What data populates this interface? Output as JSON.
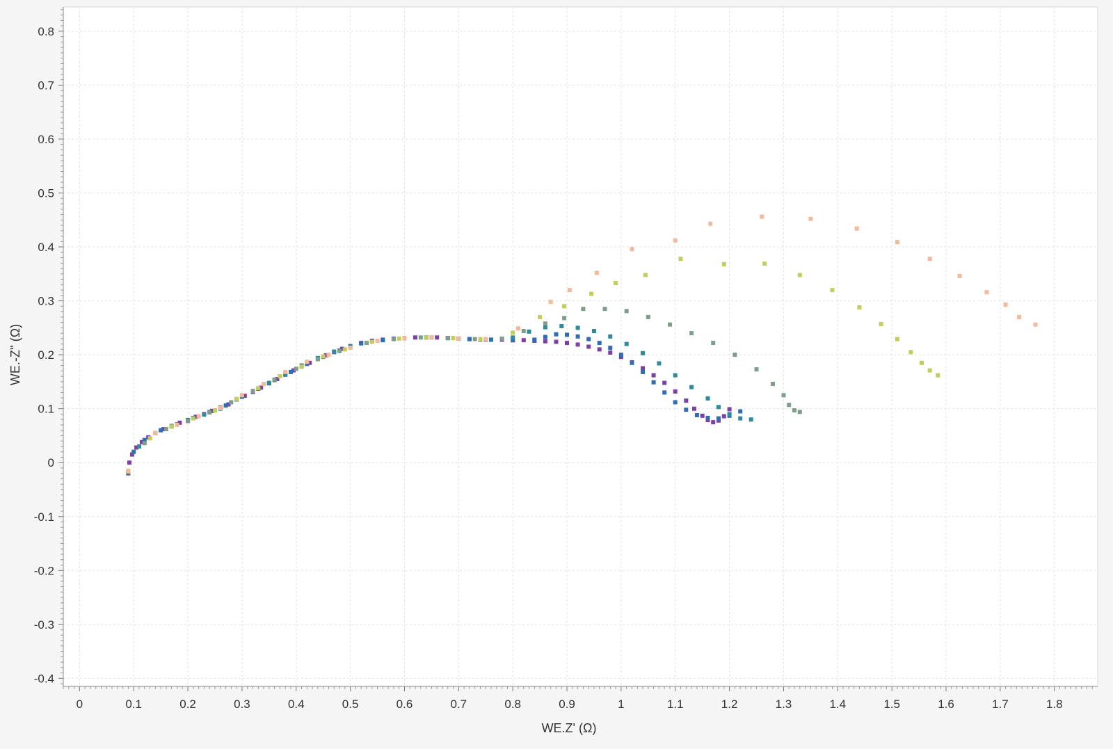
{
  "chart_data": {
    "type": "scatter",
    "title": "",
    "xlabel": "WE.Z' (Ω)",
    "ylabel": "WE.-Z'' (Ω)",
    "xlim": [
      -0.03,
      1.88
    ],
    "ylim": [
      -0.415,
      0.845
    ],
    "xticks": [
      "0",
      "0.1",
      "0.2",
      "0.3",
      "0.4",
      "0.5",
      "0.6",
      "0.7",
      "0.8",
      "0.9",
      "1",
      "1.1",
      "1.2",
      "1.3",
      "1.4",
      "1.5",
      "1.6",
      "1.7",
      "1.8"
    ],
    "yticks": [
      "0.8",
      "0.7",
      "0.6",
      "0.5",
      "0.4",
      "0.3",
      "0.2",
      "0.1",
      "0",
      "-0.1",
      "-0.2",
      "-0.3",
      "-0.4"
    ],
    "grid": true,
    "legend": "none",
    "marker": "square",
    "series": [
      {
        "color": "#7e3fa8",
        "points": [
          [
            0.09,
            -0.02
          ],
          [
            0.092,
            0.0
          ],
          [
            0.097,
            0.015
          ],
          [
            0.105,
            0.028
          ],
          [
            0.115,
            0.038
          ],
          [
            0.127,
            0.047
          ],
          [
            0.14,
            0.055
          ],
          [
            0.155,
            0.062
          ],
          [
            0.17,
            0.068
          ],
          [
            0.185,
            0.074
          ],
          [
            0.2,
            0.079
          ],
          [
            0.215,
            0.085
          ],
          [
            0.23,
            0.09
          ],
          [
            0.245,
            0.096
          ],
          [
            0.26,
            0.102
          ],
          [
            0.275,
            0.108
          ],
          [
            0.29,
            0.117
          ],
          [
            0.305,
            0.124
          ],
          [
            0.32,
            0.131
          ],
          [
            0.335,
            0.139
          ],
          [
            0.35,
            0.147
          ],
          [
            0.365,
            0.155
          ],
          [
            0.38,
            0.163
          ],
          [
            0.395,
            0.171
          ],
          [
            0.41,
            0.178
          ],
          [
            0.425,
            0.185
          ],
          [
            0.44,
            0.192
          ],
          [
            0.455,
            0.199
          ],
          [
            0.47,
            0.205
          ],
          [
            0.485,
            0.211
          ],
          [
            0.5,
            0.216
          ],
          [
            0.52,
            0.222
          ],
          [
            0.54,
            0.226
          ],
          [
            0.56,
            0.228
          ],
          [
            0.58,
            0.23
          ],
          [
            0.6,
            0.231
          ],
          [
            0.62,
            0.232
          ],
          [
            0.64,
            0.232
          ],
          [
            0.66,
            0.232
          ],
          [
            0.68,
            0.231
          ],
          [
            0.7,
            0.23
          ],
          [
            0.72,
            0.229
          ],
          [
            0.74,
            0.228
          ],
          [
            0.76,
            0.228
          ],
          [
            0.78,
            0.228
          ],
          [
            0.8,
            0.227
          ],
          [
            0.82,
            0.227
          ],
          [
            0.84,
            0.226
          ],
          [
            0.86,
            0.225
          ],
          [
            0.88,
            0.224
          ],
          [
            0.9,
            0.222
          ],
          [
            0.92,
            0.219
          ],
          [
            0.94,
            0.215
          ],
          [
            0.96,
            0.21
          ],
          [
            0.98,
            0.204
          ],
          [
            1.0,
            0.196
          ],
          [
            1.02,
            0.186
          ],
          [
            1.04,
            0.175
          ],
          [
            1.06,
            0.162
          ],
          [
            1.08,
            0.148
          ],
          [
            1.1,
            0.132
          ],
          [
            1.12,
            0.115
          ],
          [
            1.135,
            0.1
          ],
          [
            1.15,
            0.087
          ],
          [
            1.16,
            0.079
          ],
          [
            1.17,
            0.075
          ],
          [
            1.18,
            0.078
          ],
          [
            1.19,
            0.086
          ],
          [
            1.2,
            0.099
          ]
        ]
      },
      {
        "color": "#2f6db5",
        "points": [
          [
            0.09,
            -0.018
          ],
          [
            0.1,
            0.02
          ],
          [
            0.12,
            0.042
          ],
          [
            0.15,
            0.06
          ],
          [
            0.18,
            0.071
          ],
          [
            0.21,
            0.083
          ],
          [
            0.24,
            0.094
          ],
          [
            0.27,
            0.106
          ],
          [
            0.3,
            0.122
          ],
          [
            0.33,
            0.137
          ],
          [
            0.36,
            0.153
          ],
          [
            0.39,
            0.168
          ],
          [
            0.42,
            0.183
          ],
          [
            0.45,
            0.196
          ],
          [
            0.48,
            0.208
          ],
          [
            0.52,
            0.221
          ],
          [
            0.56,
            0.227
          ],
          [
            0.6,
            0.231
          ],
          [
            0.64,
            0.232
          ],
          [
            0.68,
            0.231
          ],
          [
            0.72,
            0.229
          ],
          [
            0.76,
            0.228
          ],
          [
            0.8,
            0.227
          ],
          [
            0.84,
            0.228
          ],
          [
            0.86,
            0.233
          ],
          [
            0.88,
            0.238
          ],
          [
            0.9,
            0.237
          ],
          [
            0.92,
            0.234
          ],
          [
            0.94,
            0.229
          ],
          [
            0.96,
            0.222
          ],
          [
            0.98,
            0.213
          ],
          [
            1.0,
            0.2
          ],
          [
            1.02,
            0.185
          ],
          [
            1.04,
            0.168
          ],
          [
            1.06,
            0.149
          ],
          [
            1.08,
            0.13
          ],
          [
            1.1,
            0.112
          ],
          [
            1.12,
            0.098
          ],
          [
            1.14,
            0.088
          ],
          [
            1.16,
            0.083
          ],
          [
            1.18,
            0.082
          ],
          [
            1.2,
            0.087
          ],
          [
            1.22,
            0.095
          ]
        ]
      },
      {
        "color": "#2f8a9c",
        "points": [
          [
            0.09,
            -0.018
          ],
          [
            0.11,
            0.03
          ],
          [
            0.14,
            0.055
          ],
          [
            0.17,
            0.067
          ],
          [
            0.2,
            0.078
          ],
          [
            0.23,
            0.089
          ],
          [
            0.26,
            0.1
          ],
          [
            0.29,
            0.117
          ],
          [
            0.32,
            0.132
          ],
          [
            0.35,
            0.148
          ],
          [
            0.38,
            0.164
          ],
          [
            0.41,
            0.18
          ],
          [
            0.44,
            0.194
          ],
          [
            0.47,
            0.206
          ],
          [
            0.5,
            0.216
          ],
          [
            0.55,
            0.226
          ],
          [
            0.6,
            0.231
          ],
          [
            0.65,
            0.232
          ],
          [
            0.7,
            0.23
          ],
          [
            0.75,
            0.228
          ],
          [
            0.8,
            0.232
          ],
          [
            0.83,
            0.243
          ],
          [
            0.86,
            0.251
          ],
          [
            0.89,
            0.253
          ],
          [
            0.92,
            0.25
          ],
          [
            0.95,
            0.244
          ],
          [
            0.98,
            0.234
          ],
          [
            1.01,
            0.22
          ],
          [
            1.04,
            0.203
          ],
          [
            1.07,
            0.184
          ],
          [
            1.1,
            0.162
          ],
          [
            1.13,
            0.14
          ],
          [
            1.16,
            0.119
          ],
          [
            1.18,
            0.103
          ],
          [
            1.2,
            0.09
          ],
          [
            1.22,
            0.082
          ],
          [
            1.24,
            0.08
          ]
        ]
      },
      {
        "color": "#7d9e8a",
        "points": [
          [
            0.09,
            -0.017
          ],
          [
            0.12,
            0.036
          ],
          [
            0.16,
            0.062
          ],
          [
            0.2,
            0.077
          ],
          [
            0.24,
            0.093
          ],
          [
            0.28,
            0.112
          ],
          [
            0.32,
            0.133
          ],
          [
            0.36,
            0.154
          ],
          [
            0.4,
            0.174
          ],
          [
            0.44,
            0.192
          ],
          [
            0.48,
            0.207
          ],
          [
            0.53,
            0.222
          ],
          [
            0.58,
            0.229
          ],
          [
            0.63,
            0.232
          ],
          [
            0.68,
            0.231
          ],
          [
            0.73,
            0.229
          ],
          [
            0.78,
            0.23
          ],
          [
            0.82,
            0.244
          ],
          [
            0.86,
            0.258
          ],
          [
            0.895,
            0.268
          ],
          [
            0.93,
            0.285
          ],
          [
            0.97,
            0.285
          ],
          [
            1.01,
            0.281
          ],
          [
            1.05,
            0.27
          ],
          [
            1.09,
            0.256
          ],
          [
            1.13,
            0.24
          ],
          [
            1.17,
            0.222
          ],
          [
            1.21,
            0.2
          ],
          [
            1.25,
            0.173
          ],
          [
            1.28,
            0.146
          ],
          [
            1.3,
            0.125
          ],
          [
            1.31,
            0.107
          ],
          [
            1.32,
            0.097
          ],
          [
            1.33,
            0.094
          ]
        ]
      },
      {
        "color": "#c3ce5a",
        "points": [
          [
            0.09,
            -0.016
          ],
          [
            0.13,
            0.045
          ],
          [
            0.17,
            0.067
          ],
          [
            0.21,
            0.082
          ],
          [
            0.25,
            0.097
          ],
          [
            0.29,
            0.118
          ],
          [
            0.33,
            0.138
          ],
          [
            0.37,
            0.16
          ],
          [
            0.41,
            0.178
          ],
          [
            0.45,
            0.197
          ],
          [
            0.49,
            0.21
          ],
          [
            0.54,
            0.224
          ],
          [
            0.59,
            0.23
          ],
          [
            0.64,
            0.232
          ],
          [
            0.69,
            0.231
          ],
          [
            0.74,
            0.229
          ],
          [
            0.8,
            0.241
          ],
          [
            0.85,
            0.27
          ],
          [
            0.895,
            0.29
          ],
          [
            0.945,
            0.313
          ],
          [
            0.99,
            0.333
          ],
          [
            1.045,
            0.348
          ],
          [
            1.11,
            0.378
          ],
          [
            1.19,
            0.368
          ],
          [
            1.265,
            0.369
          ],
          [
            1.33,
            0.348
          ],
          [
            1.39,
            0.32
          ],
          [
            1.44,
            0.288
          ],
          [
            1.48,
            0.257
          ],
          [
            1.51,
            0.229
          ],
          [
            1.535,
            0.205
          ],
          [
            1.555,
            0.185
          ],
          [
            1.57,
            0.171
          ],
          [
            1.585,
            0.162
          ]
        ]
      },
      {
        "color": "#f2b99a",
        "points": [
          [
            0.09,
            -0.015
          ],
          [
            0.14,
            0.055
          ],
          [
            0.18,
            0.07
          ],
          [
            0.22,
            0.086
          ],
          [
            0.26,
            0.101
          ],
          [
            0.3,
            0.125
          ],
          [
            0.34,
            0.146
          ],
          [
            0.38,
            0.168
          ],
          [
            0.42,
            0.187
          ],
          [
            0.46,
            0.2
          ],
          [
            0.5,
            0.213
          ],
          [
            0.55,
            0.226
          ],
          [
            0.6,
            0.231
          ],
          [
            0.65,
            0.232
          ],
          [
            0.7,
            0.23
          ],
          [
            0.75,
            0.229
          ],
          [
            0.81,
            0.249
          ],
          [
            0.87,
            0.298
          ],
          [
            0.905,
            0.32
          ],
          [
            0.955,
            0.352
          ],
          [
            1.02,
            0.396
          ],
          [
            1.1,
            0.412
          ],
          [
            1.165,
            0.443
          ],
          [
            1.26,
            0.456
          ],
          [
            1.35,
            0.452
          ],
          [
            1.435,
            0.434
          ],
          [
            1.51,
            0.409
          ],
          [
            1.57,
            0.378
          ],
          [
            1.625,
            0.346
          ],
          [
            1.675,
            0.316
          ],
          [
            1.71,
            0.293
          ],
          [
            1.735,
            0.27
          ],
          [
            1.765,
            0.256
          ]
        ]
      }
    ]
  }
}
